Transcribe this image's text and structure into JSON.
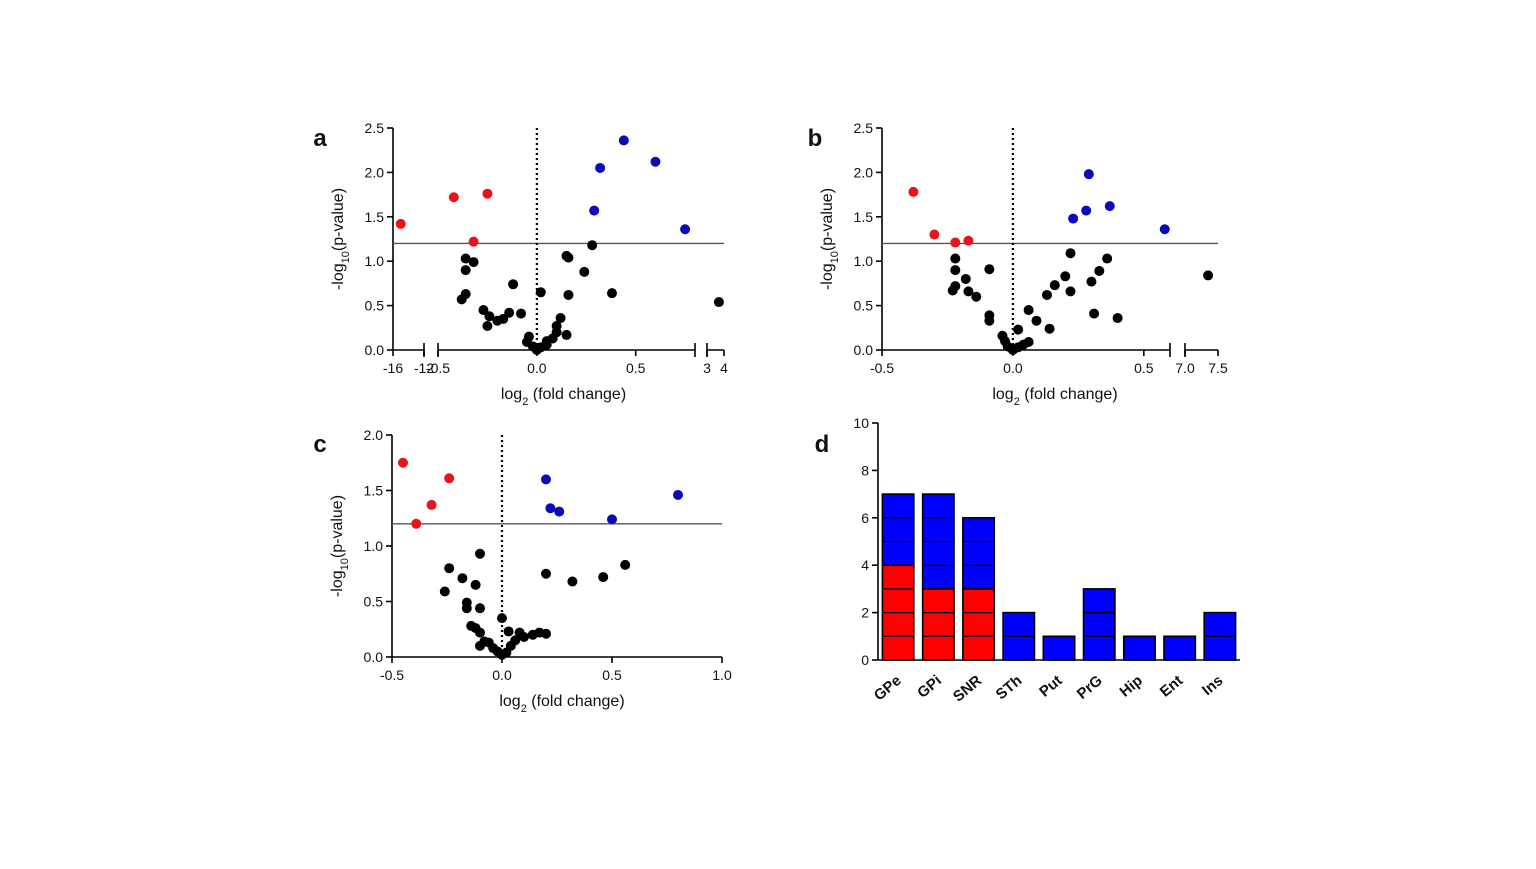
{
  "colors": {
    "down": "#e8131b",
    "up": "#0a0ab9",
    "ns": "#000000",
    "bar_up": "#0000ff",
    "bar_down": "#ff0000"
  },
  "chart_data": [
    {
      "panel": "a",
      "type": "scatter",
      "xlabel": "log2 (fold change)",
      "ylabel": "-log10(p-value)",
      "ylim": [
        0,
        2.5
      ],
      "yticks": [
        0.0,
        0.5,
        1.0,
        1.5,
        2.0,
        2.5
      ],
      "threshold_y": 1.2,
      "vline_x": 0,
      "x_segments": [
        {
          "range": [
            -16,
            -12
          ],
          "ticks": [
            -16,
            -12
          ]
        },
        {
          "range": [
            -0.5,
            0.8
          ],
          "ticks": [
            -0.5,
            0.0,
            0.5
          ]
        },
        {
          "range": [
            3,
            4
          ],
          "ticks": [
            3,
            4
          ]
        }
      ],
      "points": {
        "down": [
          [
            -15,
            1.42
          ],
          [
            -0.42,
            1.72
          ],
          [
            -0.25,
            1.76
          ],
          [
            -0.32,
            1.22
          ]
        ],
        "up": [
          [
            0.32,
            2.05
          ],
          [
            0.44,
            2.36
          ],
          [
            0.6,
            2.12
          ],
          [
            0.29,
            1.57
          ],
          [
            0.75,
            1.36
          ]
        ],
        "ns": [
          [
            -0.36,
            1.03
          ],
          [
            -0.36,
            0.9
          ],
          [
            -0.32,
            0.99
          ],
          [
            -0.36,
            0.63
          ],
          [
            -0.38,
            0.57
          ],
          [
            -0.27,
            0.45
          ],
          [
            -0.24,
            0.38
          ],
          [
            -0.25,
            0.27
          ],
          [
            -0.2,
            0.33
          ],
          [
            -0.17,
            0.35
          ],
          [
            -0.14,
            0.42
          ],
          [
            -0.12,
            0.74
          ],
          [
            -0.08,
            0.41
          ],
          [
            -0.04,
            0.15
          ],
          [
            -0.05,
            0.09
          ],
          [
            -0.02,
            0.04
          ],
          [
            0.0,
            0.0
          ],
          [
            0.02,
            0.03
          ],
          [
            0.05,
            0.06
          ],
          [
            0.08,
            0.13
          ],
          [
            0.1,
            0.2
          ],
          [
            0.1,
            0.27
          ],
          [
            0.12,
            0.36
          ],
          [
            0.15,
            0.17
          ],
          [
            0.15,
            1.06
          ],
          [
            0.16,
            1.04
          ],
          [
            0.16,
            0.62
          ],
          [
            0.02,
            0.65
          ],
          [
            0.24,
            0.88
          ],
          [
            0.28,
            1.18
          ],
          [
            0.38,
            0.64
          ],
          [
            0.05,
            0.1
          ],
          [
            3.7,
            0.54
          ]
        ]
      }
    },
    {
      "panel": "b",
      "type": "scatter",
      "xlabel": "log2 (fold change)",
      "ylabel": "-log10(p-value)",
      "ylim": [
        0,
        2.5
      ],
      "yticks": [
        0.0,
        0.5,
        1.0,
        1.5,
        2.0,
        2.5
      ],
      "threshold_y": 1.2,
      "vline_x": 0,
      "x_segments": [
        {
          "range": [
            -0.5,
            0.6
          ],
          "ticks": [
            -0.5,
            0.0,
            0.5
          ]
        },
        {
          "range": [
            7.0,
            7.5
          ],
          "ticks": [
            7.0,
            7.5
          ]
        }
      ],
      "points": {
        "down": [
          [
            -0.38,
            1.78
          ],
          [
            -0.3,
            1.3
          ],
          [
            -0.22,
            1.21
          ],
          [
            -0.17,
            1.23
          ]
        ],
        "up": [
          [
            0.29,
            1.98
          ],
          [
            0.28,
            1.57
          ],
          [
            0.23,
            1.48
          ],
          [
            0.37,
            1.62
          ],
          [
            0.58,
            1.36
          ]
        ],
        "ns": [
          [
            -0.22,
            1.03
          ],
          [
            -0.22,
            0.9
          ],
          [
            -0.22,
            0.72
          ],
          [
            -0.23,
            0.67
          ],
          [
            -0.18,
            0.8
          ],
          [
            -0.17,
            0.66
          ],
          [
            -0.14,
            0.6
          ],
          [
            -0.09,
            0.91
          ],
          [
            -0.09,
            0.39
          ],
          [
            -0.09,
            0.33
          ],
          [
            -0.04,
            0.16
          ],
          [
            -0.03,
            0.1
          ],
          [
            -0.02,
            0.04
          ],
          [
            0.0,
            0.0
          ],
          [
            0.02,
            0.03
          ],
          [
            0.04,
            0.06
          ],
          [
            0.06,
            0.09
          ],
          [
            0.02,
            0.23
          ],
          [
            0.06,
            0.45
          ],
          [
            0.09,
            0.33
          ],
          [
            0.13,
            0.62
          ],
          [
            0.16,
            0.73
          ],
          [
            0.14,
            0.24
          ],
          [
            0.2,
            0.83
          ],
          [
            0.22,
            1.09
          ],
          [
            0.22,
            0.66
          ],
          [
            0.3,
            0.77
          ],
          [
            0.33,
            0.89
          ],
          [
            0.36,
            1.03
          ],
          [
            0.31,
            0.41
          ],
          [
            0.4,
            0.36
          ],
          [
            7.35,
            0.84
          ]
        ]
      }
    },
    {
      "panel": "c",
      "type": "scatter",
      "xlabel": "log2 (fold change)",
      "ylabel": "-log10(p-value)",
      "ylim": [
        0,
        2.0
      ],
      "yticks": [
        0.0,
        0.5,
        1.0,
        1.5,
        2.0
      ],
      "threshold_y": 1.2,
      "vline_x": 0,
      "x_segments": [
        {
          "range": [
            -0.5,
            1.0
          ],
          "ticks": [
            -0.5,
            0.0,
            0.5,
            1.0
          ]
        }
      ],
      "points": {
        "down": [
          [
            -0.45,
            1.75
          ],
          [
            -0.24,
            1.61
          ],
          [
            -0.32,
            1.37
          ],
          [
            -0.39,
            1.2
          ]
        ],
        "up": [
          [
            0.2,
            1.6
          ],
          [
            0.22,
            1.34
          ],
          [
            0.26,
            1.31
          ],
          [
            0.5,
            1.24
          ],
          [
            0.8,
            1.46
          ]
        ],
        "ns": [
          [
            -0.1,
            0.93
          ],
          [
            -0.24,
            0.8
          ],
          [
            -0.18,
            0.71
          ],
          [
            -0.12,
            0.65
          ],
          [
            -0.26,
            0.59
          ],
          [
            -0.16,
            0.49
          ],
          [
            -0.16,
            0.44
          ],
          [
            -0.1,
            0.44
          ],
          [
            -0.14,
            0.28
          ],
          [
            -0.12,
            0.26
          ],
          [
            -0.1,
            0.22
          ],
          [
            -0.08,
            0.14
          ],
          [
            -0.1,
            0.1
          ],
          [
            -0.06,
            0.13
          ],
          [
            -0.04,
            0.08
          ],
          [
            -0.02,
            0.05
          ],
          [
            0.0,
            0.02
          ],
          [
            0.02,
            0.04
          ],
          [
            0.04,
            0.1
          ],
          [
            0.0,
            0.35
          ],
          [
            0.03,
            0.23
          ],
          [
            0.06,
            0.15
          ],
          [
            0.08,
            0.22
          ],
          [
            0.1,
            0.18
          ],
          [
            0.14,
            0.2
          ],
          [
            0.17,
            0.22
          ],
          [
            0.2,
            0.21
          ],
          [
            0.2,
            0.75
          ],
          [
            0.32,
            0.68
          ],
          [
            0.46,
            0.72
          ],
          [
            0.56,
            0.83
          ]
        ]
      }
    },
    {
      "panel": "d",
      "type": "bar",
      "stacked": true,
      "ylim": [
        0,
        10
      ],
      "yticks": [
        0,
        2,
        4,
        6,
        8,
        10
      ],
      "categories": [
        "GPe",
        "GPi",
        "SNR",
        "STh",
        "Put",
        "PrG",
        "Hip",
        "Ent",
        "Ins"
      ],
      "series": [
        {
          "key": "down",
          "values": [
            4,
            3,
            3,
            0,
            0,
            0,
            0,
            0,
            0
          ]
        },
        {
          "key": "up",
          "values": [
            3,
            4,
            3,
            2,
            1,
            3,
            1,
            1,
            2
          ]
        }
      ]
    }
  ]
}
